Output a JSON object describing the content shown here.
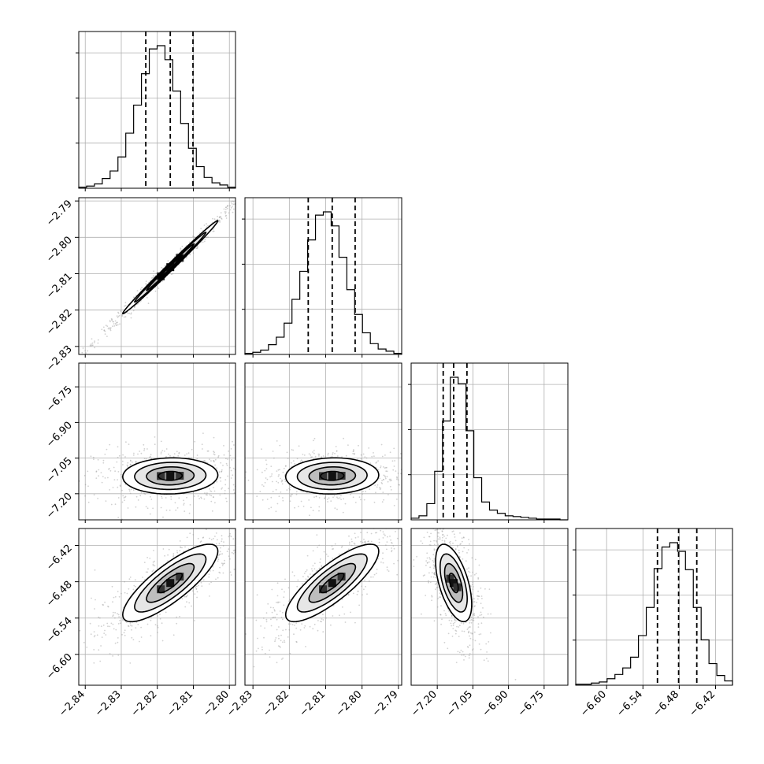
{
  "chart_data": {
    "type": "corner",
    "grid": true,
    "parameters": [
      {
        "range": [
          -2.8418,
          -2.7983
        ],
        "ticks": [
          -2.84,
          -2.83,
          -2.82,
          -2.81,
          -2.8
        ],
        "tick_labels": [
          "−2.84",
          "−2.83",
          "−2.82",
          "−2.81",
          "−2.80"
        ],
        "quantiles": [
          -2.8232,
          -2.8164,
          -2.8101
        ],
        "hist": [
          1,
          2,
          4,
          9,
          16,
          29,
          51,
          77,
          106,
          129,
          132,
          119,
          90,
          60,
          37,
          20,
          10,
          5,
          3,
          1
        ]
      },
      {
        "range": [
          -2.8322,
          -2.7891
        ],
        "ticks": [
          -2.83,
          -2.82,
          -2.81,
          -2.8,
          -2.79
        ],
        "tick_labels": [
          "−2.83",
          "−2.82",
          "−2.81",
          "−2.80",
          "−2.79"
        ],
        "quantiles": [
          -2.8148,
          -2.8082,
          -2.8019
        ],
        "hist": [
          1,
          2,
          4,
          9,
          16,
          29,
          51,
          77,
          106,
          129,
          132,
          119,
          90,
          60,
          37,
          20,
          10,
          5,
          3,
          1
        ]
      },
      {
        "range": [
          -7.31,
          -6.65
        ],
        "ticks": [
          -7.2,
          -7.05,
          -6.9,
          -6.75
        ],
        "tick_labels": [
          "−7.20",
          "−7.05",
          "−6.90",
          "−6.75"
        ],
        "quantiles": [
          -7.175,
          -7.131,
          -7.075
        ],
        "hist": [
          2,
          5,
          20,
          60,
          122,
          176,
          168,
          110,
          52,
          22,
          12,
          8,
          5,
          4,
          3,
          2,
          1,
          1,
          1,
          0
        ]
      },
      {
        "range": [
          -6.651,
          -6.392
        ],
        "ticks": [
          -6.6,
          -6.54,
          -6.48,
          -6.42
        ],
        "tick_labels": [
          "−6.60",
          "−6.54",
          "−6.48",
          "−6.42"
        ],
        "quantiles": [
          -6.516,
          -6.481,
          -6.451
        ],
        "hist": [
          1,
          1,
          2,
          3,
          6,
          10,
          16,
          26,
          46,
          72,
          108,
          128,
          132,
          124,
          107,
          72,
          42,
          20,
          9,
          4
        ]
      }
    ],
    "pairs": [
      {
        "x": 0,
        "y": 1,
        "center": [
          -2.8164,
          -2.8082
        ],
        "sd": [
          0.0066,
          0.0064
        ],
        "corr": 0.995,
        "contours": [
          0.5,
          1.0,
          1.5,
          2.0
        ]
      },
      {
        "x": 0,
        "y": 2,
        "center": [
          -2.8164,
          -7.125
        ],
        "sd": [
          0.0066,
          0.038
        ],
        "corr": 0.05,
        "contours": [
          0.5,
          1.0,
          1.5,
          2.0
        ]
      },
      {
        "x": 1,
        "y": 2,
        "center": [
          -2.8082,
          -7.125
        ],
        "sd": [
          0.0064,
          0.038
        ],
        "corr": 0.05,
        "contours": [
          0.5,
          1.0,
          1.5,
          2.0
        ]
      },
      {
        "x": 0,
        "y": 3,
        "center": [
          -2.8164,
          -6.482
        ],
        "sd": [
          0.0066,
          0.032
        ],
        "corr": 0.82,
        "contours": [
          0.5,
          1.0,
          1.5,
          2.0
        ]
      },
      {
        "x": 1,
        "y": 3,
        "center": [
          -2.8082,
          -6.482
        ],
        "sd": [
          0.0064,
          0.032
        ],
        "corr": 0.82,
        "contours": [
          0.5,
          1.0,
          1.5,
          2.0
        ]
      },
      {
        "x": 2,
        "y": 3,
        "center": [
          -7.131,
          -6.482
        ],
        "sd": [
          0.038,
          0.032
        ],
        "corr": -0.55,
        "contours": [
          0.5,
          1.0,
          1.5,
          2.0
        ]
      }
    ]
  }
}
